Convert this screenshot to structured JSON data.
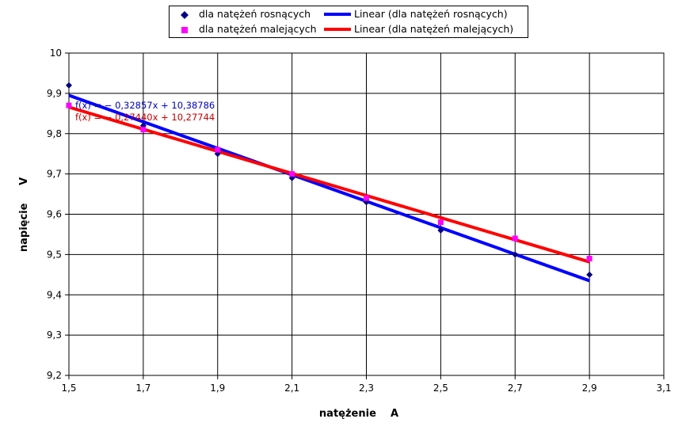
{
  "chart_data": {
    "type": "scatter",
    "xlabel": "natężenie    A",
    "ylabel": "napięcie     V",
    "xlim": [
      1.5,
      3.1
    ],
    "ylim": [
      9.2,
      10
    ],
    "x_ticks": [
      "1,5",
      "1,7",
      "1,9",
      "2,1",
      "2,3",
      "2,5",
      "2,7",
      "2,9",
      "3,1"
    ],
    "y_ticks": [
      "9,2",
      "9,3",
      "9,4",
      "9,5",
      "9,6",
      "9,7",
      "9,8",
      "9,9",
      "10"
    ],
    "grid": true,
    "legend_position": "top",
    "series": [
      {
        "name": "dla natężeń rosnących",
        "marker": "diamond",
        "color": "#000080",
        "points": [
          [
            1.5,
            9.92
          ],
          [
            1.7,
            9.82
          ],
          [
            1.9,
            9.75
          ],
          [
            2.1,
            9.69
          ],
          [
            2.3,
            9.63
          ],
          [
            2.5,
            9.56
          ],
          [
            2.7,
            9.5
          ],
          [
            2.9,
            9.45
          ]
        ]
      },
      {
        "name": "dla natężeń malejących",
        "marker": "square",
        "color": "#ff00ff",
        "points": [
          [
            1.5,
            9.87
          ],
          [
            1.7,
            9.81
          ],
          [
            1.9,
            9.76
          ],
          [
            2.1,
            9.7
          ],
          [
            2.3,
            9.64
          ],
          [
            2.5,
            9.58
          ],
          [
            2.7,
            9.54
          ],
          [
            2.9,
            9.49
          ]
        ]
      }
    ],
    "trendlines": [
      {
        "name": "Linear (dla natężeń rosnących)",
        "color": "#0000ff",
        "slope": -0.32857,
        "intercept": 10.38786,
        "x_range": [
          1.5,
          2.9
        ],
        "equation": "f(x) = − 0,32857x + 10,38786"
      },
      {
        "name": "Linear (dla natężeń malejących)",
        "color": "#ff0000",
        "slope": -0.2744,
        "intercept": 10.27744,
        "x_range": [
          1.5,
          2.9
        ],
        "equation": "f(x) = − 0,27440x + 10,27744"
      }
    ]
  }
}
